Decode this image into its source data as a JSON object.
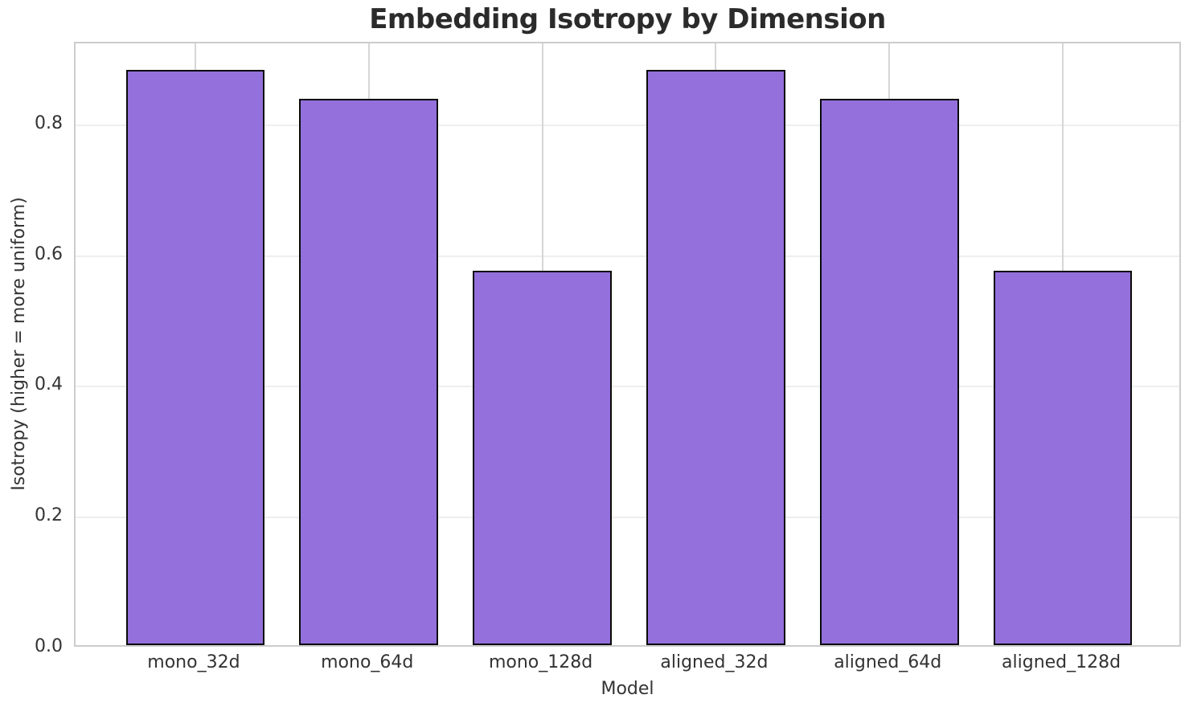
{
  "chart_data": {
    "type": "bar",
    "title": "Embedding Isotropy by Dimension",
    "xlabel": "Model",
    "ylabel": "Isotropy (higher = more uniform)",
    "categories": [
      "mono_32d",
      "mono_64d",
      "mono_128d",
      "aligned_32d",
      "aligned_64d",
      "aligned_128d"
    ],
    "values": [
      0.88,
      0.835,
      0.572,
      0.88,
      0.835,
      0.572
    ],
    "ylim": [
      0,
      0.925
    ],
    "xlim": [
      -0.69,
      5.69
    ],
    "yticks": [
      0.0,
      0.2,
      0.4,
      0.6,
      0.8
    ],
    "ytick_labels": [
      "0.0",
      "0.2",
      "0.4",
      "0.6",
      "0.8"
    ],
    "bar_width_fraction": 0.8,
    "grid": true,
    "legend": false,
    "colors": {
      "bar_fill": "#9370DB",
      "bar_edge": "#0a0a0a",
      "grid_horizontal": "#eeeeee",
      "grid_vertical": "#d6d6d6",
      "spine": "#cccccc",
      "tick_text": "#333333",
      "title_text": "#2b2b2b"
    }
  }
}
